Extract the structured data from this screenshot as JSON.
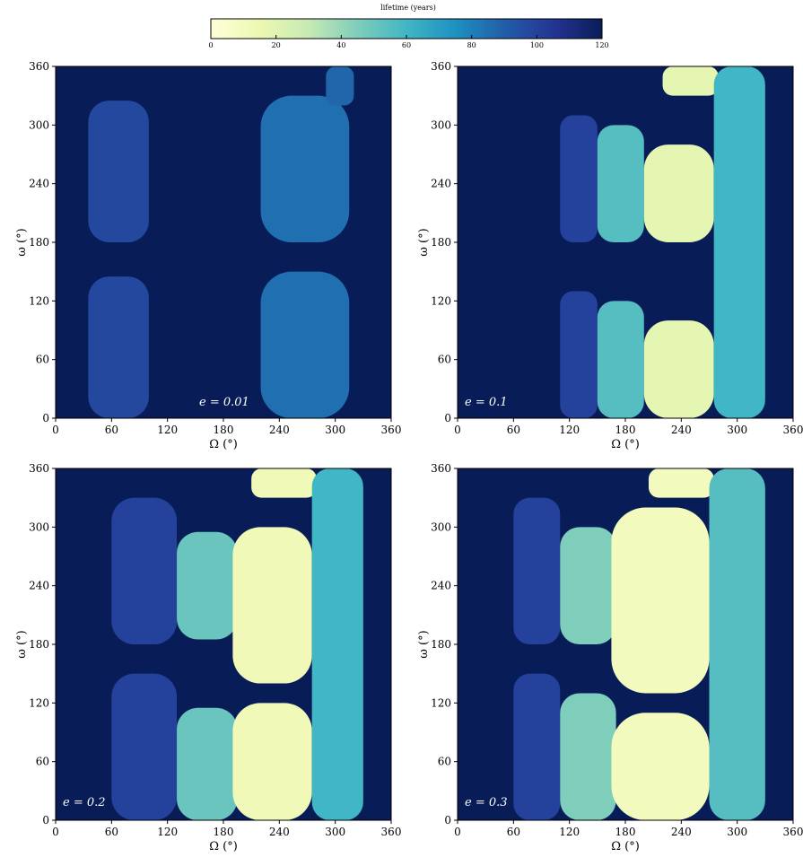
{
  "colorbar": {
    "label": "lifetime (years)",
    "ticks": [
      "0",
      "20",
      "40",
      "60",
      "80",
      "100",
      "120"
    ],
    "range": [
      0,
      120
    ],
    "colormap": "YlGnBu",
    "colors": [
      "#ffffd9",
      "#edf8b1",
      "#c7e9b4",
      "#7fcdbb",
      "#41b6c4",
      "#1d91c0",
      "#225ea8",
      "#253494",
      "#081d58"
    ]
  },
  "chart_data": [
    {
      "type": "heatmap",
      "annotation": "e = 0.01",
      "xlabel": "Ω (°)",
      "ylabel": "ω (°)",
      "xlim": [
        0,
        360
      ],
      "ylim": [
        0,
        360
      ],
      "xticks": [
        "0",
        "60",
        "120",
        "180",
        "240",
        "300",
        "360"
      ],
      "yticks": [
        "0",
        "60",
        "120",
        "180",
        "240",
        "300",
        "360"
      ],
      "background_value": 120,
      "regions": [
        {
          "omega_node": [
            35,
            100
          ],
          "arg_peri": [
            0,
            145
          ],
          "value": 98
        },
        {
          "omega_node": [
            35,
            100
          ],
          "arg_peri": [
            180,
            325
          ],
          "value": 98
        },
        {
          "omega_node": [
            220,
            315
          ],
          "arg_peri": [
            0,
            150
          ],
          "value": 85
        },
        {
          "omega_node": [
            220,
            315
          ],
          "arg_peri": [
            180,
            330
          ],
          "value": 85
        },
        {
          "omega_node": [
            290,
            320
          ],
          "arg_peri": [
            320,
            360
          ],
          "value": 88
        }
      ]
    },
    {
      "type": "heatmap",
      "annotation": "e = 0.1",
      "xlabel": "Ω (°)",
      "ylabel": "ω (°)",
      "xlim": [
        0,
        360
      ],
      "ylim": [
        0,
        360
      ],
      "xticks": [
        "0",
        "60",
        "120",
        "180",
        "240",
        "300",
        "360"
      ],
      "yticks": [
        "0",
        "60",
        "120",
        "180",
        "240",
        "300",
        "360"
      ],
      "background_value": 120,
      "regions": [
        {
          "omega_node": [
            110,
            150
          ],
          "arg_peri": [
            0,
            130
          ],
          "value": 100
        },
        {
          "omega_node": [
            110,
            150
          ],
          "arg_peri": [
            180,
            310
          ],
          "value": 100
        },
        {
          "omega_node": [
            150,
            200
          ],
          "arg_peri": [
            0,
            120
          ],
          "value": 55
        },
        {
          "omega_node": [
            150,
            200
          ],
          "arg_peri": [
            180,
            300
          ],
          "value": 55
        },
        {
          "omega_node": [
            200,
            275
          ],
          "arg_peri": [
            0,
            100
          ],
          "value": 18
        },
        {
          "omega_node": [
            200,
            275
          ],
          "arg_peri": [
            180,
            280
          ],
          "value": 18
        },
        {
          "omega_node": [
            220,
            280
          ],
          "arg_peri": [
            330,
            360
          ],
          "value": 18
        },
        {
          "omega_node": [
            275,
            330
          ],
          "arg_peri": [
            0,
            360
          ],
          "value": 60
        }
      ]
    },
    {
      "type": "heatmap",
      "annotation": "e = 0.2",
      "xlabel": "Ω (°)",
      "ylabel": "ω (°)",
      "xlim": [
        0,
        360
      ],
      "ylim": [
        0,
        360
      ],
      "xticks": [
        "0",
        "60",
        "120",
        "180",
        "240",
        "300",
        "360"
      ],
      "yticks": [
        "0",
        "60",
        "120",
        "180",
        "240",
        "300",
        "360"
      ],
      "background_value": 120,
      "regions": [
        {
          "omega_node": [
            60,
            130
          ],
          "arg_peri": [
            0,
            150
          ],
          "value": 100
        },
        {
          "omega_node": [
            60,
            130
          ],
          "arg_peri": [
            180,
            330
          ],
          "value": 100
        },
        {
          "omega_node": [
            130,
            195
          ],
          "arg_peri": [
            0,
            115
          ],
          "value": 50
        },
        {
          "omega_node": [
            130,
            195
          ],
          "arg_peri": [
            185,
            295
          ],
          "value": 50
        },
        {
          "omega_node": [
            190,
            275
          ],
          "arg_peri": [
            0,
            120
          ],
          "value": 12
        },
        {
          "omega_node": [
            190,
            275
          ],
          "arg_peri": [
            140,
            300
          ],
          "value": 12
        },
        {
          "omega_node": [
            210,
            280
          ],
          "arg_peri": [
            330,
            360
          ],
          "value": 12
        },
        {
          "omega_node": [
            275,
            330
          ],
          "arg_peri": [
            0,
            360
          ],
          "value": 60
        }
      ]
    },
    {
      "type": "heatmap",
      "annotation": "e = 0.3",
      "xlabel": "Ω (°)",
      "ylabel": "ω (°)",
      "xlim": [
        0,
        360
      ],
      "ylim": [
        0,
        360
      ],
      "xticks": [
        "0",
        "60",
        "120",
        "180",
        "240",
        "300",
        "360"
      ],
      "yticks": [
        "0",
        "60",
        "120",
        "180",
        "240",
        "300",
        "360"
      ],
      "background_value": 120,
      "regions": [
        {
          "omega_node": [
            60,
            110
          ],
          "arg_peri": [
            0,
            150
          ],
          "value": 100
        },
        {
          "omega_node": [
            60,
            110
          ],
          "arg_peri": [
            180,
            330
          ],
          "value": 100
        },
        {
          "omega_node": [
            110,
            170
          ],
          "arg_peri": [
            0,
            130
          ],
          "value": 45
        },
        {
          "omega_node": [
            110,
            170
          ],
          "arg_peri": [
            180,
            300
          ],
          "value": 45
        },
        {
          "omega_node": [
            165,
            270
          ],
          "arg_peri": [
            0,
            110
          ],
          "value": 10
        },
        {
          "omega_node": [
            165,
            270
          ],
          "arg_peri": [
            130,
            320
          ],
          "value": 10
        },
        {
          "omega_node": [
            205,
            275
          ],
          "arg_peri": [
            330,
            360
          ],
          "value": 10
        },
        {
          "omega_node": [
            270,
            330
          ],
          "arg_peri": [
            0,
            360
          ],
          "value": 55
        }
      ]
    }
  ]
}
